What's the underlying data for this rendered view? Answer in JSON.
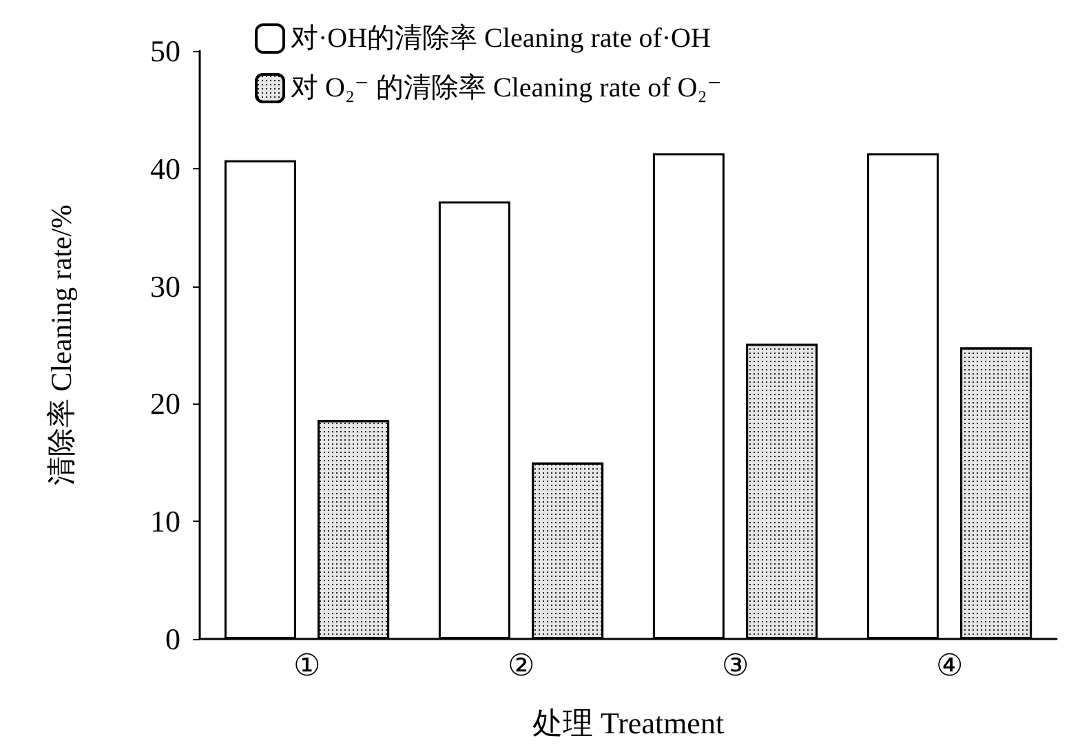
{
  "chart_data": {
    "type": "bar",
    "xlabel": "处理 Treatment",
    "ylabel": "清除率 Cleaning rate/%",
    "categories": [
      "①",
      "②",
      "③",
      "④"
    ],
    "series": [
      {
        "name": "对·OH的清除率 Cleaning rate of·OH",
        "color": "#ffffff",
        "values": [
          40.7,
          37.2,
          41.3,
          41.3
        ]
      },
      {
        "name": "对 O₂⁻ 的清除率 Cleaning rate of O₂⁻",
        "color": "#e6e6e6",
        "values": [
          18.6,
          15.0,
          25.1,
          24.8
        ]
      }
    ],
    "ylim": [
      0,
      50
    ],
    "yticks": [
      0,
      10,
      20,
      30,
      40,
      50
    ],
    "grid": false,
    "legend": "top left"
  }
}
